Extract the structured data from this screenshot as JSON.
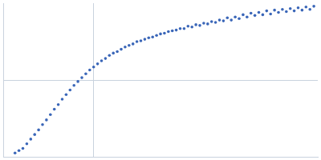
{
  "chart_data": {
    "type": "scatter",
    "color": "#3a66b8",
    "marker": "circle",
    "grid": true,
    "tick_labels": false,
    "xlim": [
      0,
      400
    ],
    "xticks": [
      115
    ],
    "ylim": [
      0,
      200
    ],
    "yticks": [
      100
    ],
    "x": [
      15,
      20,
      25,
      30,
      35,
      40,
      45,
      50,
      55,
      60,
      65,
      70,
      75,
      80,
      85,
      90,
      95,
      100,
      105,
      110,
      115,
      120,
      125,
      130,
      135,
      140,
      145,
      150,
      155,
      160,
      165,
      170,
      175,
      180,
      185,
      190,
      195,
      200,
      205,
      210,
      215,
      220,
      225,
      230,
      235,
      240,
      245,
      250,
      255,
      260,
      265,
      270,
      275,
      280,
      285,
      290,
      295,
      300,
      305,
      310,
      315,
      320,
      325,
      330,
      335,
      340,
      345,
      350,
      355,
      360,
      365,
      370,
      375,
      380,
      385,
      390,
      395
    ],
    "values": [
      5,
      8,
      11,
      17,
      23,
      29,
      35,
      42,
      48,
      55,
      62,
      68,
      75,
      81,
      87,
      93,
      98,
      103,
      108,
      113,
      117,
      121,
      125,
      128,
      132,
      135,
      137,
      140,
      143,
      145,
      147,
      150,
      151,
      153,
      155,
      156,
      158,
      160,
      161,
      163,
      164,
      165,
      167,
      167,
      170,
      169,
      172,
      171,
      174,
      173,
      176,
      175,
      178,
      177,
      181,
      178,
      182,
      180,
      185,
      182,
      187,
      184,
      188,
      185,
      190,
      186,
      191,
      188,
      192,
      189,
      193,
      190,
      194,
      191,
      195,
      192,
      196
    ]
  }
}
